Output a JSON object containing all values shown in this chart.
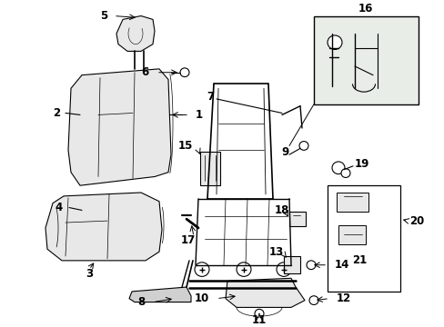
{
  "bg_color": "#ffffff",
  "line_color": "#000000",
  "fig_width": 4.89,
  "fig_height": 3.6,
  "dpi": 100,
  "fill_light": "#e8e8e8",
  "fill_mid": "#d0d0d0",
  "fill_box": "#dde8dd"
}
